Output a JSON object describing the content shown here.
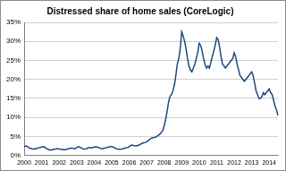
{
  "chart_data": {
    "type": "line",
    "title": "Distressed share of home sales (CoreLogic)",
    "categories": [
      "2000",
      null,
      null,
      null,
      null,
      null,
      null,
      null,
      null,
      null,
      null,
      null,
      "2001",
      null,
      null,
      null,
      null,
      null,
      null,
      null,
      null,
      null,
      null,
      null,
      "2002",
      null,
      null,
      null,
      null,
      null,
      null,
      null,
      null,
      null,
      null,
      null,
      "2003",
      null,
      null,
      null,
      null,
      null,
      null,
      null,
      null,
      null,
      null,
      null,
      "2004",
      null,
      null,
      null,
      null,
      null,
      null,
      null,
      null,
      null,
      null,
      null,
      "2005",
      null,
      null,
      null,
      null,
      null,
      null,
      null,
      null,
      null,
      null,
      null,
      "2006",
      null,
      null,
      null,
      null,
      null,
      null,
      null,
      null,
      null,
      null,
      null,
      "2007",
      null,
      null,
      null,
      null,
      null,
      null,
      null,
      null,
      null,
      null,
      null,
      "2008",
      null,
      null,
      null,
      null,
      null,
      null,
      null,
      null,
      null,
      null,
      null,
      "2009",
      null,
      null,
      null,
      null,
      null,
      null,
      null,
      null,
      null,
      null,
      null,
      "2010",
      null,
      null,
      null,
      null,
      null,
      null,
      null,
      null,
      null,
      null,
      null,
      "2011",
      null,
      null,
      null,
      null,
      null,
      null,
      null,
      null,
      null,
      null,
      null,
      "2012",
      null,
      null,
      null,
      null,
      null,
      null,
      null,
      null,
      null,
      null,
      null,
      "2013",
      null,
      null,
      null,
      null,
      null,
      null,
      null,
      null,
      null,
      null,
      null,
      "2014",
      null,
      null,
      null,
      null,
      null,
      null
    ],
    "values": [
      2.2,
      2.5,
      2.4,
      2.1,
      1.9,
      1.8,
      1.7,
      1.7,
      1.8,
      1.9,
      2.0,
      2.1,
      2.2,
      2.3,
      2.2,
      1.9,
      1.7,
      1.5,
      1.4,
      1.5,
      1.6,
      1.6,
      1.7,
      1.8,
      1.7,
      1.6,
      1.6,
      1.5,
      1.5,
      1.6,
      1.7,
      1.8,
      1.9,
      1.9,
      1.8,
      1.8,
      2.0,
      2.3,
      2.2,
      2.0,
      1.8,
      1.6,
      1.7,
      1.8,
      2.0,
      2.1,
      2.0,
      2.0,
      2.2,
      2.3,
      2.2,
      2.1,
      1.9,
      1.8,
      1.8,
      1.9,
      2.0,
      2.1,
      2.2,
      2.3,
      2.3,
      2.2,
      2.0,
      1.8,
      1.7,
      1.6,
      1.6,
      1.7,
      1.8,
      1.9,
      2.0,
      2.1,
      2.3,
      2.6,
      2.7,
      2.6,
      2.5,
      2.5,
      2.6,
      2.8,
      3.0,
      3.2,
      3.3,
      3.4,
      3.6,
      3.9,
      4.2,
      4.5,
      4.6,
      4.7,
      4.8,
      5.0,
      5.3,
      5.6,
      6.0,
      6.5,
      7.8,
      9.5,
      11.5,
      14.0,
      15.5,
      16.0,
      17.0,
      18.5,
      21.0,
      24.0,
      25.5,
      28.0,
      32.5,
      31.5,
      30.0,
      28.0,
      25.5,
      23.5,
      22.5,
      22.0,
      23.0,
      24.0,
      25.5,
      27.0,
      29.5,
      29.0,
      27.5,
      25.5,
      24.0,
      23.0,
      23.5,
      23.0,
      24.5,
      26.0,
      27.5,
      29.0,
      31.0,
      30.5,
      28.5,
      26.0,
      24.0,
      23.5,
      23.0,
      23.5,
      24.0,
      24.5,
      25.0,
      25.5,
      27.0,
      26.0,
      24.0,
      22.5,
      21.0,
      20.5,
      20.0,
      19.5,
      20.0,
      20.5,
      21.0,
      21.5,
      22.0,
      21.0,
      19.0,
      17.0,
      16.0,
      15.0,
      15.0,
      15.5,
      16.5,
      16.0,
      16.5,
      17.0,
      17.5,
      16.5,
      16.0,
      14.5,
      13.0,
      12.0,
      10.5
    ],
    "color": "#1F497D",
    "ylim": [
      0,
      35
    ],
    "yticks": [
      {
        "value": 0,
        "label": "0%"
      },
      {
        "value": 5,
        "label": "5%"
      },
      {
        "value": 10,
        "label": "10%"
      },
      {
        "value": 15,
        "label": "15%"
      },
      {
        "value": 20,
        "label": "20%"
      },
      {
        "value": 25,
        "label": "25%"
      },
      {
        "value": 30,
        "label": "30%"
      },
      {
        "value": 35,
        "label": "35%"
      }
    ],
    "grid": true
  }
}
